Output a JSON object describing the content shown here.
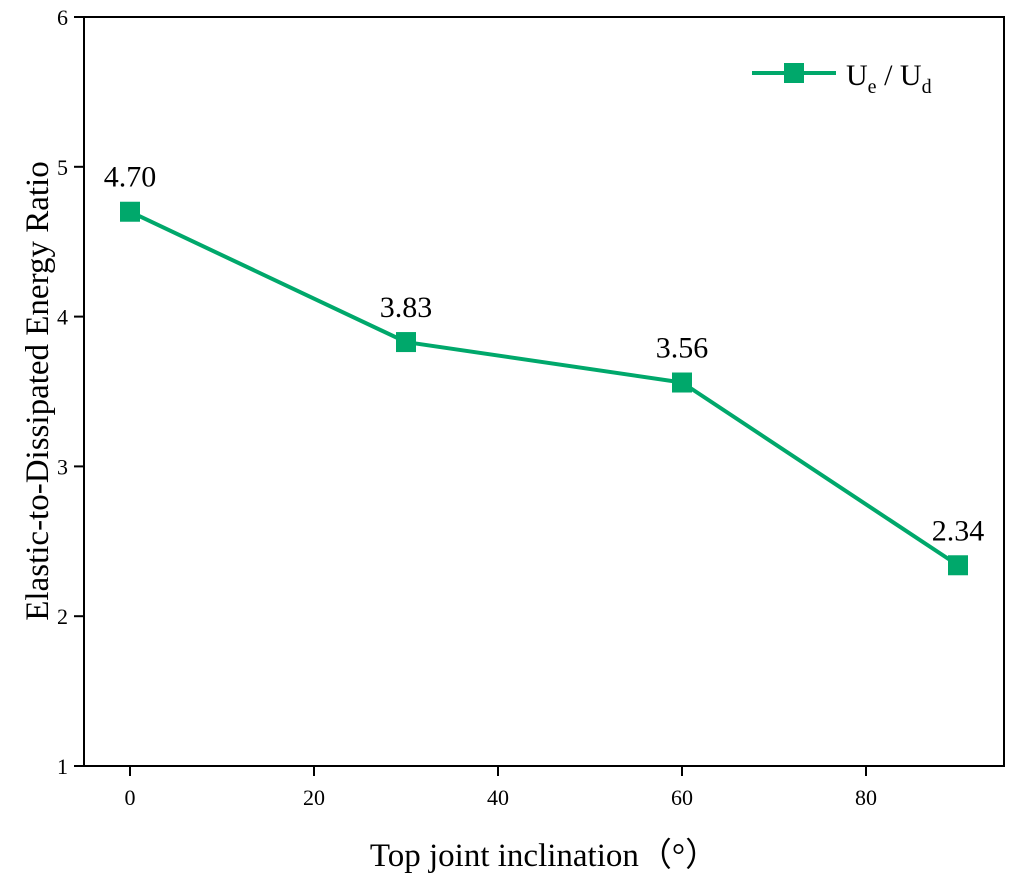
{
  "chart_data": {
    "type": "line",
    "title": "",
    "xlabel": "Top joint inclination（°）",
    "ylabel": "Elastic-to-Dissipated Energy Ratio",
    "xlim": [
      -5,
      95
    ],
    "ylim": [
      1,
      6
    ],
    "xticks": [
      0,
      20,
      40,
      60,
      80
    ],
    "yticks": [
      1,
      2,
      3,
      4,
      5,
      6
    ],
    "grid": false,
    "legend_position": "top-right",
    "series": [
      {
        "name": "Ue / Ud",
        "legend_main_1": "U",
        "legend_sub_1": "e",
        "legend_sep": " / U",
        "legend_sub_2": "d",
        "color": "#00a86b",
        "marker": "square",
        "x": [
          0,
          30,
          60,
          90
        ],
        "y": [
          4.7,
          3.83,
          3.56,
          2.34
        ],
        "labels": [
          "4.70",
          "3.83",
          "3.56",
          "2.34"
        ]
      }
    ]
  }
}
